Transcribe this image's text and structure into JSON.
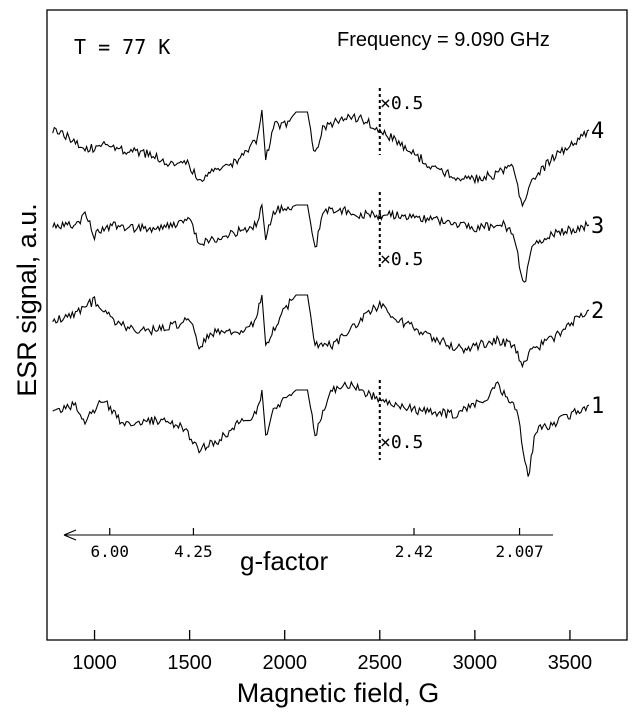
{
  "chart_data": {
    "type": "line",
    "title": "",
    "xlabel": "Magnetic field, G",
    "ylabel": "ESR signal, a.u.",
    "xlim": [
      750,
      3800
    ],
    "x_ticks": [
      1000,
      1500,
      2000,
      2500,
      3000,
      3500
    ],
    "x_tick_labels": [
      "1000",
      "1500",
      "2000",
      "2500",
      "3000",
      "3500"
    ],
    "annotations": {
      "temperature": "T = 77 K",
      "frequency": "Frequency = 9.090 GHz",
      "scale_factor": "×0.5",
      "scale_change_field": 2500
    },
    "g_factor_axis": {
      "label": "g-factor",
      "ticks": [
        {
          "label": "6.00",
          "field": 1080
        },
        {
          "label": "4.25",
          "field": 1520
        },
        {
          "label": "2.42",
          "field": 2680
        },
        {
          "label": "2.007",
          "field": 3235
        }
      ]
    },
    "series": [
      {
        "name": "4",
        "scaled_above_field": 2500,
        "points": [
          [
            780,
            130
          ],
          [
            900,
            140
          ],
          [
            950,
            150
          ],
          [
            1050,
            145
          ],
          [
            1150,
            150
          ],
          [
            1300,
            155
          ],
          [
            1420,
            165
          ],
          [
            1480,
            160
          ],
          [
            1550,
            180
          ],
          [
            1650,
            170
          ],
          [
            1750,
            160
          ],
          [
            1850,
            140
          ],
          [
            1880,
            110
          ],
          [
            1900,
            160
          ],
          [
            1940,
            125
          ],
          [
            2000,
            125
          ],
          [
            2060,
            112
          ],
          [
            2120,
            112
          ],
          [
            2160,
            155
          ],
          [
            2200,
            130
          ],
          [
            2300,
            118
          ],
          [
            2400,
            118
          ],
          [
            2500,
            130
          ],
          [
            2650,
            150
          ],
          [
            2800,
            170
          ],
          [
            2950,
            180
          ],
          [
            3100,
            175
          ],
          [
            3200,
            165
          ],
          [
            3250,
            205
          ],
          [
            3300,
            180
          ],
          [
            3400,
            160
          ],
          [
            3500,
            145
          ],
          [
            3600,
            130
          ]
        ]
      },
      {
        "name": "3",
        "scaled_above_field": 2500,
        "points": [
          [
            780,
            225
          ],
          [
            900,
            225
          ],
          [
            950,
            215
          ],
          [
            1000,
            235
          ],
          [
            1100,
            225
          ],
          [
            1300,
            230
          ],
          [
            1500,
            220
          ],
          [
            1550,
            245
          ],
          [
            1700,
            235
          ],
          [
            1850,
            225
          ],
          [
            1880,
            205
          ],
          [
            1900,
            240
          ],
          [
            1940,
            210
          ],
          [
            2000,
            210
          ],
          [
            2060,
            205
          ],
          [
            2120,
            205
          ],
          [
            2160,
            250
          ],
          [
            2200,
            210
          ],
          [
            2300,
            210
          ],
          [
            2400,
            215
          ],
          [
            2500,
            215
          ],
          [
            2600,
            215
          ],
          [
            2800,
            220
          ],
          [
            3000,
            228
          ],
          [
            3150,
            225
          ],
          [
            3200,
            235
          ],
          [
            3260,
            285
          ],
          [
            3300,
            245
          ],
          [
            3400,
            235
          ],
          [
            3500,
            230
          ],
          [
            3600,
            225
          ]
        ]
      },
      {
        "name": "2",
        "points": [
          [
            780,
            320
          ],
          [
            900,
            315
          ],
          [
            1000,
            300
          ],
          [
            1100,
            320
          ],
          [
            1200,
            330
          ],
          [
            1350,
            330
          ],
          [
            1500,
            320
          ],
          [
            1550,
            345
          ],
          [
            1650,
            330
          ],
          [
            1780,
            330
          ],
          [
            1850,
            320
          ],
          [
            1880,
            295
          ],
          [
            1900,
            345
          ],
          [
            1940,
            330
          ],
          [
            2000,
            310
          ],
          [
            2060,
            295
          ],
          [
            2120,
            295
          ],
          [
            2160,
            345
          ],
          [
            2250,
            345
          ],
          [
            2350,
            330
          ],
          [
            2450,
            310
          ],
          [
            2500,
            305
          ],
          [
            2600,
            320
          ],
          [
            2700,
            330
          ],
          [
            2800,
            340
          ],
          [
            2950,
            350
          ],
          [
            3100,
            340
          ],
          [
            3200,
            345
          ],
          [
            3250,
            365
          ],
          [
            3300,
            350
          ],
          [
            3400,
            340
          ],
          [
            3500,
            325
          ],
          [
            3600,
            310
          ]
        ]
      },
      {
        "name": "1",
        "scaled_above_field": 2500,
        "points": [
          [
            780,
            410
          ],
          [
            900,
            405
          ],
          [
            950,
            420
          ],
          [
            1050,
            400
          ],
          [
            1150,
            425
          ],
          [
            1300,
            420
          ],
          [
            1450,
            425
          ],
          [
            1550,
            450
          ],
          [
            1650,
            440
          ],
          [
            1750,
            425
          ],
          [
            1850,
            415
          ],
          [
            1880,
            390
          ],
          [
            1900,
            435
          ],
          [
            1940,
            410
          ],
          [
            2000,
            400
          ],
          [
            2060,
            390
          ],
          [
            2120,
            390
          ],
          [
            2160,
            435
          ],
          [
            2250,
            390
          ],
          [
            2350,
            385
          ],
          [
            2450,
            395
          ],
          [
            2500,
            400
          ],
          [
            2700,
            410
          ],
          [
            2900,
            415
          ],
          [
            3050,
            400
          ],
          [
            3120,
            385
          ],
          [
            3170,
            400
          ],
          [
            3220,
            410
          ],
          [
            3280,
            480
          ],
          [
            3320,
            430
          ],
          [
            3400,
            425
          ],
          [
            3500,
            415
          ],
          [
            3600,
            405
          ]
        ]
      }
    ]
  }
}
